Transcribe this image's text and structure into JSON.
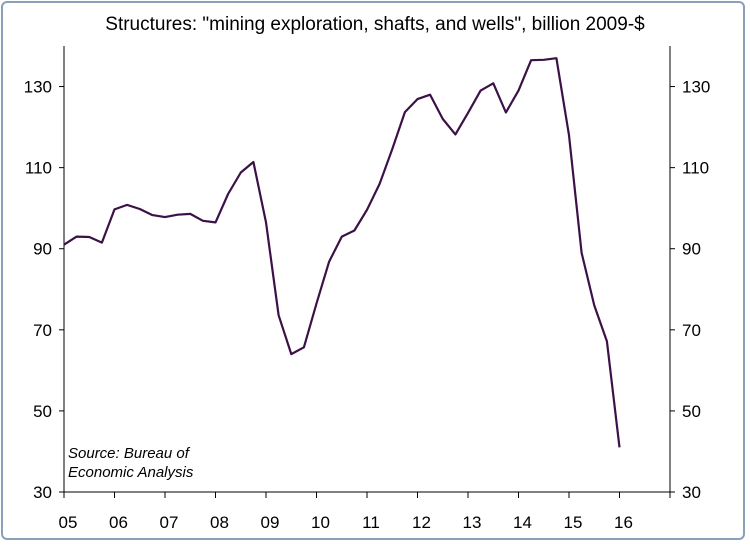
{
  "chart_data": {
    "type": "line",
    "title": "Structures: \"mining exploration, shafts, and wells\", billion 2009-$",
    "source_text": [
      "Source: Bureau of",
      "Economic Analysis"
    ],
    "x_tick_labels": [
      "05",
      "06",
      "07",
      "08",
      "09",
      "10",
      "11",
      "12",
      "13",
      "14",
      "15",
      "16"
    ],
    "y_ticks": [
      30,
      50,
      70,
      90,
      110,
      130
    ],
    "ylim": [
      30,
      140
    ],
    "xlim": [
      2005,
      2017
    ],
    "axes": "both-y",
    "grid": false,
    "line_color": "#3b1147",
    "series": [
      {
        "x": [
          2005.0,
          2005.25,
          2005.5,
          2005.75,
          2006.0,
          2006.25,
          2006.5,
          2006.75,
          2007.0,
          2007.25,
          2007.5,
          2007.75,
          2008.0,
          2008.25,
          2008.5,
          2008.75,
          2009.0,
          2009.25,
          2009.5,
          2009.75,
          2010.0,
          2010.25,
          2010.5,
          2010.75,
          2011.0,
          2011.25,
          2011.5,
          2011.75,
          2012.0,
          2012.25,
          2012.5,
          2012.75,
          2013.0,
          2013.25,
          2013.5,
          2013.75,
          2014.0,
          2014.25,
          2014.5,
          2014.75,
          2015.0,
          2015.25,
          2015.5,
          2015.75,
          2016.0
        ],
        "y": [
          91,
          93,
          92.9,
          91.5,
          99.7,
          100.8,
          99.8,
          98.3,
          97.8,
          98.4,
          98.6,
          96.9,
          96.5,
          103.5,
          108.8,
          111.4,
          96.5,
          73.6,
          64.0,
          65.7,
          76.5,
          86.8,
          93.0,
          94.5,
          99.6,
          106.0,
          114.6,
          123.7,
          126.9,
          128.0,
          122.0,
          118.2,
          123.5,
          129.0,
          130.8,
          123.6,
          129.0,
          136.5,
          136.6,
          137.0,
          118.0,
          89.0,
          76.0,
          67.2,
          41.0
        ]
      }
    ]
  }
}
